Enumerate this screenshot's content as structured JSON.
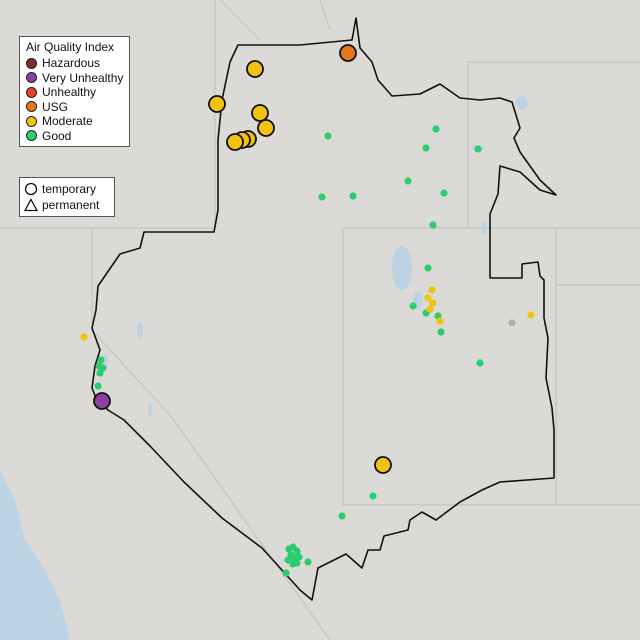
{
  "legend_aqi": {
    "title": "Air Quality Index",
    "items": [
      {
        "label": "Hazardous",
        "color": "#7e2f2a"
      },
      {
        "label": "Very Unhealthy",
        "color": "#8f3fa0"
      },
      {
        "label": "Unhealthy",
        "color": "#e8432c"
      },
      {
        "label": "USG",
        "color": "#e8761c"
      },
      {
        "label": "Moderate",
        "color": "#f2c211"
      },
      {
        "label": "Good",
        "color": "#2ecc71"
      }
    ]
  },
  "legend_type": {
    "items": [
      {
        "label": "temporary",
        "icon": "circle-icon"
      },
      {
        "label": "permanent",
        "icon": "triangle-icon"
      }
    ]
  },
  "colors": {
    "land": "#e2e0dc",
    "water": "#bcd3e3",
    "state_border": "#c9c7c3",
    "region_border": "#111111",
    "monitor_off": "#b0b0b0"
  },
  "monitors": {
    "temporary_large": [
      {
        "aqi": "USG"
      },
      {
        "aqi": "Moderate"
      },
      {
        "aqi": "Moderate"
      },
      {
        "aqi": "Moderate"
      },
      {
        "aqi": "Moderate"
      },
      {
        "aqi": "Moderate"
      },
      {
        "aqi": "Moderate"
      },
      {
        "aqi": "Moderate"
      },
      {
        "aqi": "Very Unhealthy"
      },
      {
        "aqi": "Moderate"
      }
    ]
  }
}
